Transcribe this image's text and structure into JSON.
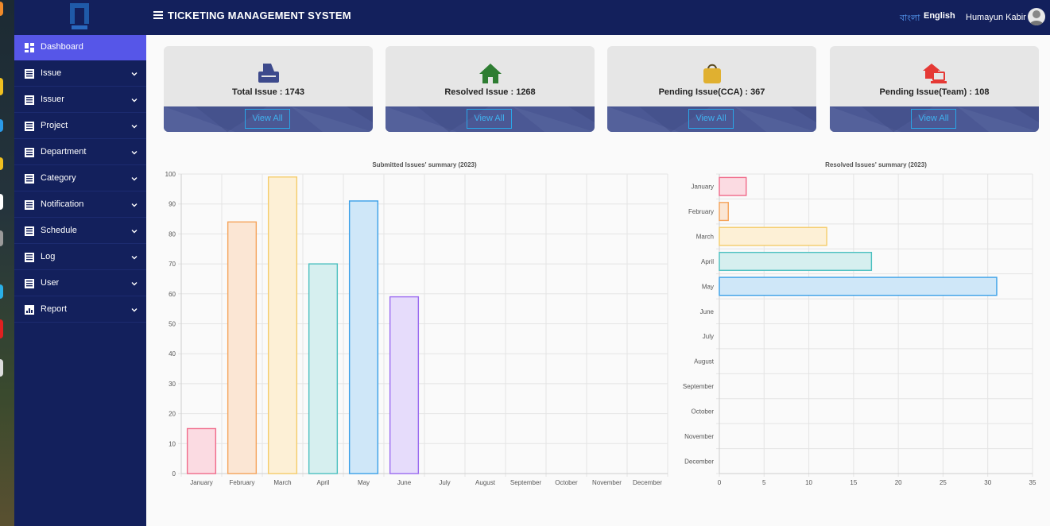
{
  "app": {
    "title": "TICKETING MANAGEMENT SYSTEM"
  },
  "header": {
    "lang_bn": "বাংলা",
    "lang_en": "English",
    "user_name": "Humayun Kabir"
  },
  "sidebar": {
    "items": [
      {
        "label": "Dashboard",
        "icon": "dashboard-icon",
        "active": true,
        "has_submenu": false
      },
      {
        "label": "Issue",
        "icon": "list-icon",
        "has_submenu": true
      },
      {
        "label": "Issuer",
        "icon": "list-icon",
        "has_submenu": true
      },
      {
        "label": "Project",
        "icon": "list-icon",
        "has_submenu": true
      },
      {
        "label": "Department",
        "icon": "list-icon",
        "has_submenu": true
      },
      {
        "label": "Category",
        "icon": "list-icon",
        "has_submenu": true
      },
      {
        "label": "Notification",
        "icon": "list-icon",
        "has_submenu": true
      },
      {
        "label": "Schedule",
        "icon": "list-icon",
        "has_submenu": true
      },
      {
        "label": "Log",
        "icon": "list-icon",
        "has_submenu": true
      },
      {
        "label": "User",
        "icon": "list-icon",
        "has_submenu": true
      },
      {
        "label": "Report",
        "icon": "bar-chart-icon",
        "has_submenu": true
      }
    ]
  },
  "cards": [
    {
      "label": "Total Issue :  1743",
      "icon": "inbox-tray-icon",
      "icon_color": "#3d4a8c",
      "button": "View All"
    },
    {
      "label": "Resolved Issue :  1268",
      "icon": "home-icon",
      "icon_color": "#2e7d32",
      "button": "View All"
    },
    {
      "label": "Pending Issue(CCA) :  367",
      "icon": "shopping-bag-icon",
      "icon_color": "#e0b030",
      "button": "View All"
    },
    {
      "label": "Pending Issue(Team) :  108",
      "icon": "home-laptop-icon",
      "icon_color": "#e53935",
      "button": "View All"
    }
  ],
  "chart_data": [
    {
      "type": "bar",
      "title": "Submitted Issues' summary (2023)",
      "categories": [
        "January",
        "February",
        "March",
        "April",
        "May",
        "June",
        "July",
        "August",
        "September",
        "October",
        "November",
        "December"
      ],
      "values": [
        15,
        84,
        99,
        70,
        91,
        59,
        0,
        0,
        0,
        0,
        0,
        0
      ],
      "ylim": [
        0,
        100
      ],
      "yticks": [
        0,
        10,
        20,
        30,
        40,
        50,
        60,
        70,
        80,
        90,
        100
      ],
      "grid": true,
      "colors": [
        "#f06a8a",
        "#f5a35a",
        "#f5cc6a",
        "#4cc0c0",
        "#3aa0e8",
        "#9a6af0"
      ],
      "fills": [
        "#fbdbe2",
        "#fbe6d4",
        "#fdf0d6",
        "#d6efef",
        "#cfe7f8",
        "#e6dcfb"
      ]
    },
    {
      "type": "bar",
      "orientation": "horizontal",
      "title": "Resolved Issues' summary (2023)",
      "categories": [
        "January",
        "February",
        "March",
        "April",
        "May",
        "June",
        "July",
        "August",
        "September",
        "October",
        "November",
        "December"
      ],
      "values": [
        3,
        1,
        12,
        17,
        31,
        0,
        0,
        0,
        0,
        0,
        0,
        0
      ],
      "xlim": [
        0,
        35
      ],
      "xticks": [
        0,
        5,
        10,
        15,
        20,
        25,
        30,
        35
      ],
      "grid": true,
      "colors": [
        "#f06a8a",
        "#f5a35a",
        "#f5cc6a",
        "#4cc0c0",
        "#3aa0e8"
      ],
      "fills": [
        "#fbdbe2",
        "#fbe6d4",
        "#fdf0d6",
        "#d6efef",
        "#cfe7f8"
      ]
    }
  ]
}
